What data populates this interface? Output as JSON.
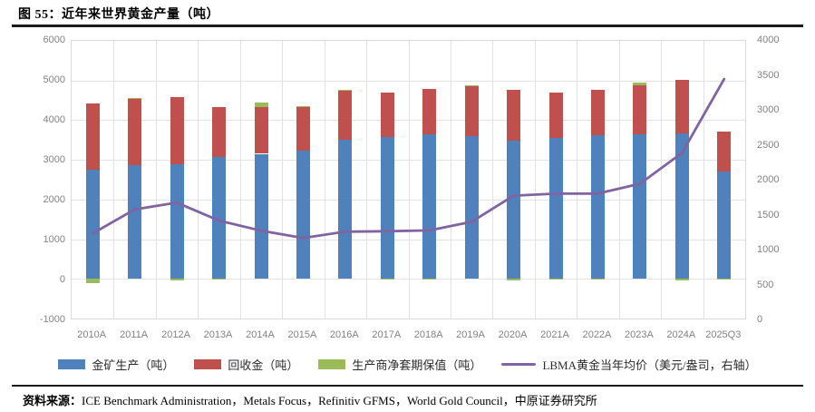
{
  "title": "图 55：近年来世界黄金产量（吨）",
  "source": {
    "label": "资料来源：",
    "text": "ICE Benchmark Administration，Metals Focus，Refinitiv GFMS，World Gold Council，中原证券研究所"
  },
  "colors": {
    "mine_bar": "#4F81BD",
    "recycled_bar": "#C0504D",
    "hedging_bar": "#9BBB59",
    "price_line": "#8064A2",
    "gridline": "#E2E2E2",
    "axis_text": "#828282",
    "rule": "#1A1A1A"
  },
  "chart_data": {
    "type": "bar",
    "subtype": "stacked-bars-with-right-axis-line",
    "title": "近年来世界黄金产量（吨）",
    "categories": [
      "2010A",
      "2011A",
      "2012A",
      "2013A",
      "2014A",
      "2015A",
      "2016A",
      "2017A",
      "2018A",
      "2019A",
      "2020A",
      "2021A",
      "2022A",
      "2023A",
      "2024A",
      "2025Q3"
    ],
    "series": [
      {
        "name": "金矿生产（吨）",
        "type": "bar",
        "stack": "supply",
        "axis": "left",
        "color": "#4F81BD",
        "values": [
          2744,
          2869,
          2883,
          3076,
          3151,
          3222,
          3508,
          3577,
          3655,
          3597,
          3474,
          3560,
          3626,
          3644,
          3661,
          2700
        ]
      },
      {
        "name": "回收金（吨）",
        "type": "bar",
        "stack": "supply",
        "axis": "left",
        "color": "#C0504D",
        "values": [
          1683,
          1666,
          1691,
          1262,
          1188,
          1121,
          1232,
          1112,
          1132,
          1276,
          1293,
          1136,
          1140,
          1237,
          1350,
          1010
        ]
      },
      {
        "name": "生产商净套期保值（吨）",
        "type": "bar",
        "stack": "supply",
        "axis": "left",
        "color": "#9BBB59",
        "values": [
          -109,
          23,
          -45,
          -28,
          106,
          13,
          33,
          -26,
          -12,
          6,
          -37,
          -21,
          -10,
          60,
          -30,
          -20
        ]
      },
      {
        "name": "LBMA黄金当年均价（美元/盎司，右轴）",
        "type": "line",
        "axis": "right",
        "color": "#8064A2",
        "values": [
          1225,
          1572,
          1669,
          1411,
          1266,
          1160,
          1251,
          1257,
          1269,
          1393,
          1770,
          1799,
          1800,
          1941,
          2386,
          3450
        ]
      }
    ],
    "left_axis": {
      "min": -1000,
      "max": 6000,
      "step": 1000,
      "ticks": [
        "6000",
        "5000",
        "4000",
        "3000",
        "2000",
        "1000",
        "0",
        "-1000"
      ]
    },
    "right_axis": {
      "min": 0,
      "max": 4000,
      "step": 500,
      "ticks": [
        "4000",
        "3500",
        "3000",
        "2500",
        "2000",
        "1500",
        "1000",
        "500",
        "0"
      ]
    },
    "grid": true,
    "legend_position": "bottom"
  }
}
